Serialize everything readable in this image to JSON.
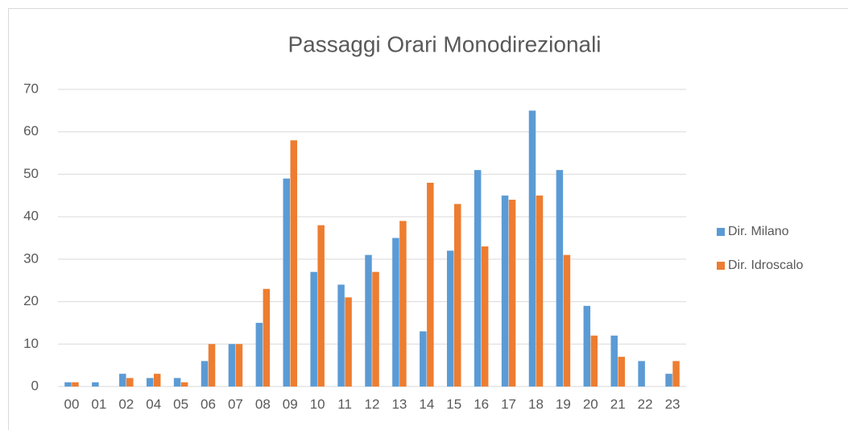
{
  "chart_data": {
    "type": "bar",
    "title": "Passaggi Orari Monodirezionali",
    "categories": [
      "00",
      "01",
      "02",
      "04",
      "05",
      "06",
      "07",
      "08",
      "09",
      "10",
      "11",
      "12",
      "13",
      "14",
      "15",
      "16",
      "17",
      "18",
      "19",
      "20",
      "21",
      "22",
      "23"
    ],
    "series": [
      {
        "name": "Dir. Milano",
        "color": "#5b9bd5",
        "values": [
          1,
          1,
          3,
          2,
          2,
          6,
          10,
          15,
          49,
          27,
          24,
          31,
          35,
          13,
          32,
          51,
          45,
          65,
          51,
          19,
          12,
          6,
          3
        ]
      },
      {
        "name": "Dir. Idroscalo",
        "color": "#ed7d31",
        "values": [
          1,
          0,
          2,
          3,
          1,
          10,
          10,
          23,
          58,
          38,
          21,
          27,
          39,
          48,
          43,
          33,
          44,
          45,
          31,
          12,
          7,
          0,
          6
        ]
      }
    ],
    "ylim": [
      0,
      70
    ],
    "yticks": [
      0,
      10,
      20,
      30,
      40,
      50,
      60,
      70
    ],
    "grid": true,
    "legend": "right"
  }
}
